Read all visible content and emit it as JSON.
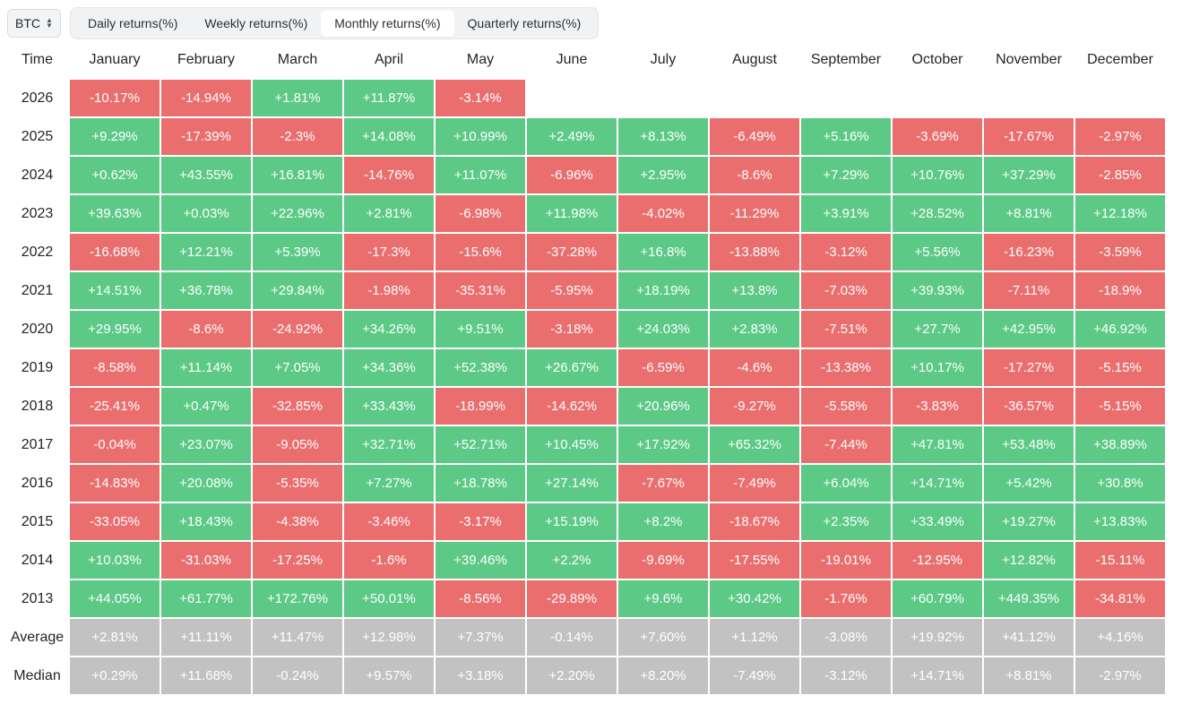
{
  "toolbar": {
    "asset": "BTC",
    "tabs": [
      {
        "label": "Daily returns(%)",
        "active": false
      },
      {
        "label": "Weekly returns(%)",
        "active": false
      },
      {
        "label": "Monthly returns(%)",
        "active": true
      },
      {
        "label": "Quarterly returns(%)",
        "active": false
      }
    ]
  },
  "colors": {
    "positive": "#5cc987",
    "negative": "#ea6e6e",
    "summary": "#c2c2c2"
  },
  "table": {
    "time_header": "Time",
    "months": [
      "January",
      "February",
      "March",
      "April",
      "May",
      "June",
      "July",
      "August",
      "September",
      "October",
      "November",
      "December"
    ],
    "rows": [
      {
        "label": "2026",
        "values": [
          "-10.17%",
          "-14.94%",
          "+1.81%",
          "+11.87%",
          "-3.14%",
          "",
          "",
          "",
          "",
          "",
          "",
          ""
        ]
      },
      {
        "label": "2025",
        "values": [
          "+9.29%",
          "-17.39%",
          "-2.3%",
          "+14.08%",
          "+10.99%",
          "+2.49%",
          "+8.13%",
          "-6.49%",
          "+5.16%",
          "-3.69%",
          "-17.67%",
          "-2.97%"
        ]
      },
      {
        "label": "2024",
        "values": [
          "+0.62%",
          "+43.55%",
          "+16.81%",
          "-14.76%",
          "+11.07%",
          "-6.96%",
          "+2.95%",
          "-8.6%",
          "+7.29%",
          "+10.76%",
          "+37.29%",
          "-2.85%"
        ]
      },
      {
        "label": "2023",
        "values": [
          "+39.63%",
          "+0.03%",
          "+22.96%",
          "+2.81%",
          "-6.98%",
          "+11.98%",
          "-4.02%",
          "-11.29%",
          "+3.91%",
          "+28.52%",
          "+8.81%",
          "+12.18%"
        ]
      },
      {
        "label": "2022",
        "values": [
          "-16.68%",
          "+12.21%",
          "+5.39%",
          "-17.3%",
          "-15.6%",
          "-37.28%",
          "+16.8%",
          "-13.88%",
          "-3.12%",
          "+5.56%",
          "-16.23%",
          "-3.59%"
        ]
      },
      {
        "label": "2021",
        "values": [
          "+14.51%",
          "+36.78%",
          "+29.84%",
          "-1.98%",
          "-35.31%",
          "-5.95%",
          "+18.19%",
          "+13.8%",
          "-7.03%",
          "+39.93%",
          "-7.11%",
          "-18.9%"
        ]
      },
      {
        "label": "2020",
        "values": [
          "+29.95%",
          "-8.6%",
          "-24.92%",
          "+34.26%",
          "+9.51%",
          "-3.18%",
          "+24.03%",
          "+2.83%",
          "-7.51%",
          "+27.7%",
          "+42.95%",
          "+46.92%"
        ]
      },
      {
        "label": "2019",
        "values": [
          "-8.58%",
          "+11.14%",
          "+7.05%",
          "+34.36%",
          "+52.38%",
          "+26.67%",
          "-6.59%",
          "-4.6%",
          "-13.38%",
          "+10.17%",
          "-17.27%",
          "-5.15%"
        ]
      },
      {
        "label": "2018",
        "values": [
          "-25.41%",
          "+0.47%",
          "-32.85%",
          "+33.43%",
          "-18.99%",
          "-14.62%",
          "+20.96%",
          "-9.27%",
          "-5.58%",
          "-3.83%",
          "-36.57%",
          "-5.15%"
        ]
      },
      {
        "label": "2017",
        "values": [
          "-0.04%",
          "+23.07%",
          "-9.05%",
          "+32.71%",
          "+52.71%",
          "+10.45%",
          "+17.92%",
          "+65.32%",
          "-7.44%",
          "+47.81%",
          "+53.48%",
          "+38.89%"
        ]
      },
      {
        "label": "2016",
        "values": [
          "-14.83%",
          "+20.08%",
          "-5.35%",
          "+7.27%",
          "+18.78%",
          "+27.14%",
          "-7.67%",
          "-7.49%",
          "+6.04%",
          "+14.71%",
          "+5.42%",
          "+30.8%"
        ]
      },
      {
        "label": "2015",
        "values": [
          "-33.05%",
          "+18.43%",
          "-4.38%",
          "-3.46%",
          "-3.17%",
          "+15.19%",
          "+8.2%",
          "-18.67%",
          "+2.35%",
          "+33.49%",
          "+19.27%",
          "+13.83%"
        ]
      },
      {
        "label": "2014",
        "values": [
          "+10.03%",
          "-31.03%",
          "-17.25%",
          "-1.6%",
          "+39.46%",
          "+2.2%",
          "-9.69%",
          "-17.55%",
          "-19.01%",
          "-12.95%",
          "+12.82%",
          "-15.11%"
        ]
      },
      {
        "label": "2013",
        "values": [
          "+44.05%",
          "+61.77%",
          "+172.76%",
          "+50.01%",
          "-8.56%",
          "-29.89%",
          "+9.6%",
          "+30.42%",
          "-1.76%",
          "+60.79%",
          "+449.35%",
          "-34.81%"
        ]
      }
    ],
    "summary_rows": [
      {
        "label": "Average",
        "values": [
          "+2.81%",
          "+11.11%",
          "+11.47%",
          "+12.98%",
          "+7.37%",
          "-0.14%",
          "+7.60%",
          "+1.12%",
          "-3.08%",
          "+19.92%",
          "+41.12%",
          "+4.16%"
        ]
      },
      {
        "label": "Median",
        "values": [
          "+0.29%",
          "+11.68%",
          "-0.24%",
          "+9.57%",
          "+3.18%",
          "+2.20%",
          "+8.20%",
          "-7.49%",
          "-3.12%",
          "+14.71%",
          "+8.81%",
          "-2.97%"
        ]
      }
    ]
  }
}
